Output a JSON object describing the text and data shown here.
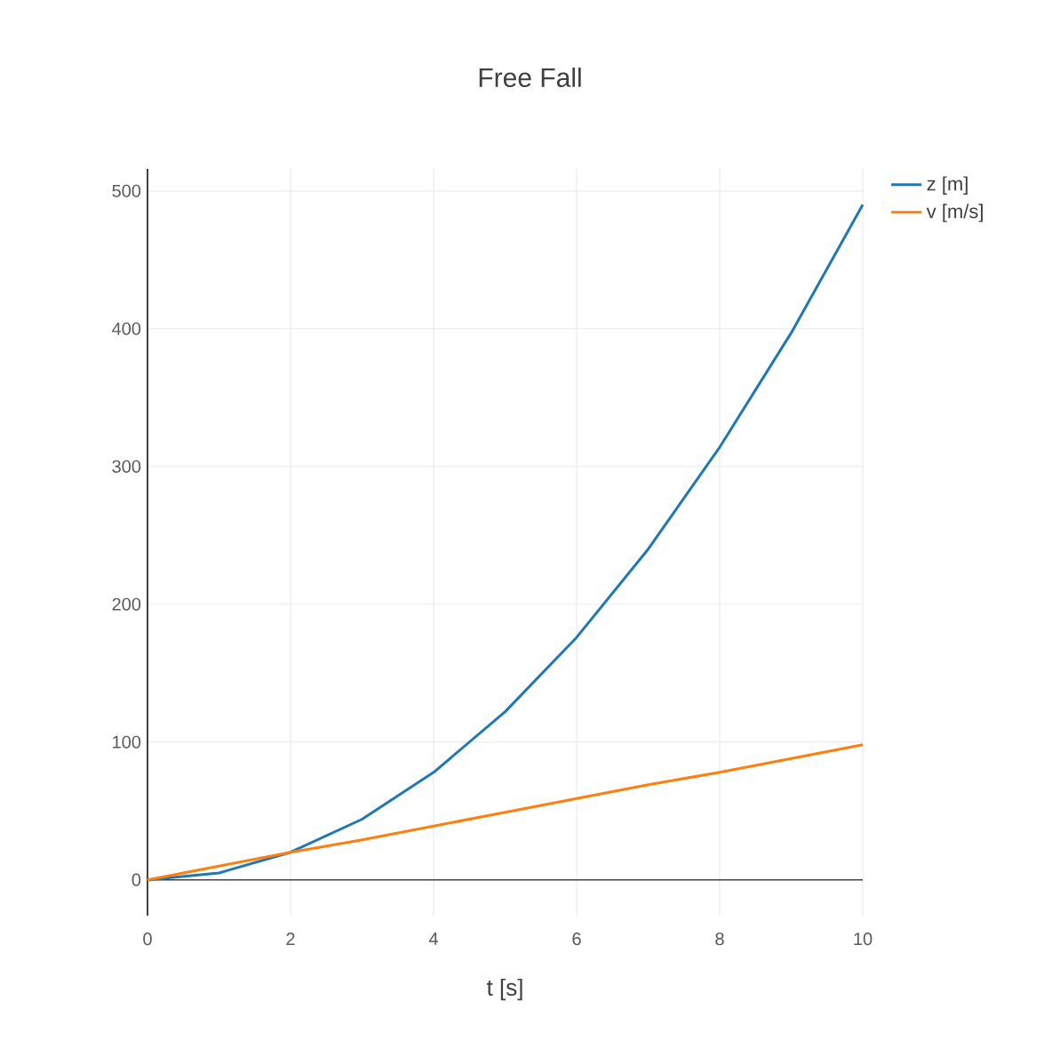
{
  "chart_data": {
    "type": "line",
    "title": "Free Fall",
    "xlabel": "t [s]",
    "x": [
      0,
      1,
      2,
      3,
      4,
      5,
      6,
      7,
      8,
      9,
      10
    ],
    "series": [
      {
        "name": "z [m]",
        "color": "#1f77b4",
        "values": [
          0,
          5,
          20,
          44,
          78,
          122,
          176,
          240,
          314,
          397,
          490
        ]
      },
      {
        "name": "v [m/s]",
        "color": "#ff7f0e",
        "values": [
          0,
          10,
          20,
          29,
          39,
          49,
          59,
          69,
          78,
          88,
          98
        ]
      }
    ],
    "xlim": [
      0,
      10
    ],
    "ylim": [
      -26,
      516
    ],
    "xticks": [
      0,
      2,
      4,
      6,
      8,
      10
    ],
    "yticks": [
      0,
      100,
      200,
      300,
      400,
      500
    ],
    "ref_lines": [
      {
        "axis": "y",
        "value": 0,
        "color": "#444444"
      }
    ],
    "grid": true,
    "legend": "top right",
    "marker": "none",
    "line_style": "solid"
  }
}
